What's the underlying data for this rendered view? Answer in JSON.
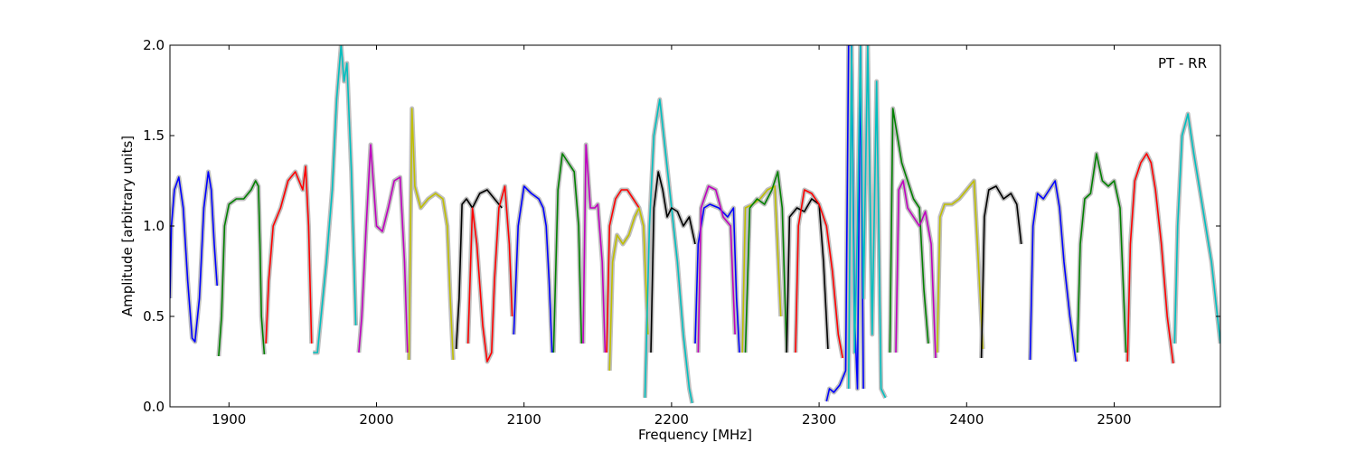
{
  "chart_data": {
    "type": "line",
    "title": "",
    "xlabel": "Frequency [MHz]",
    "ylabel": "Amplitude [arbitrary units]",
    "xlim": [
      1860,
      2572
    ],
    "ylim": [
      0,
      2.0
    ],
    "grid": false,
    "annotation": "PT - RR",
    "x_ticks": [
      1900,
      2000,
      2100,
      2200,
      2300,
      2400,
      2500
    ],
    "y_ticks": [
      0.0,
      0.5,
      1.0,
      1.5,
      2.0
    ],
    "x_tick_labels": [
      "1900",
      "2000",
      "2100",
      "2200",
      "2300",
      "2400",
      "2500"
    ],
    "y_tick_labels": [
      "0.0",
      "0.5",
      "1.0",
      "1.5",
      "2.0"
    ],
    "background_color": "#bfbfbf",
    "series": [
      {
        "color": "#0000ff",
        "x": [
          1860,
          1861,
          1863,
          1866,
          1869,
          1872,
          1875,
          1877,
          1880,
          1883,
          1886,
          1888,
          1890,
          1892
        ],
        "y": [
          0.6,
          1.0,
          1.2,
          1.27,
          1.1,
          0.7,
          0.38,
          0.36,
          0.6,
          1.1,
          1.3,
          1.2,
          0.9,
          0.67
        ]
      },
      {
        "color": "#008000",
        "x": [
          1893,
          1895,
          1897,
          1900,
          1905,
          1910,
          1915,
          1918,
          1920,
          1921,
          1922,
          1924
        ],
        "y": [
          0.28,
          0.5,
          1.0,
          1.12,
          1.15,
          1.15,
          1.2,
          1.25,
          1.22,
          0.9,
          0.5,
          0.29
        ]
      },
      {
        "color": "#ff0000",
        "x": [
          1925,
          1927,
          1930,
          1935,
          1940,
          1945,
          1950,
          1952,
          1954,
          1956
        ],
        "y": [
          0.35,
          0.7,
          1.0,
          1.1,
          1.25,
          1.3,
          1.2,
          1.33,
          1.0,
          0.35
        ]
      },
      {
        "color": "#00bfbf",
        "x": [
          1957,
          1960,
          1963,
          1966,
          1970,
          1973,
          1976,
          1978,
          1980,
          1983,
          1986
        ],
        "y": [
          0.3,
          0.3,
          0.55,
          0.8,
          1.2,
          1.7,
          2.0,
          1.8,
          1.9,
          1.3,
          0.45
        ]
      },
      {
        "color": "#bf00bf",
        "x": [
          1988,
          1990,
          1993,
          1996,
          2000,
          2004,
          2008,
          2012,
          2016,
          2019,
          2021
        ],
        "y": [
          0.3,
          0.5,
          1.0,
          1.45,
          1.0,
          0.97,
          1.1,
          1.25,
          1.27,
          0.8,
          0.3
        ]
      },
      {
        "color": "#bfbf00",
        "x": [
          2022,
          2024,
          2026,
          2030,
          2035,
          2040,
          2045,
          2048,
          2050,
          2052
        ],
        "y": [
          0.26,
          1.65,
          1.22,
          1.1,
          1.15,
          1.18,
          1.15,
          1.0,
          0.6,
          0.26
        ]
      },
      {
        "color": "#000000",
        "x": [
          2054,
          2056,
          2058,
          2061,
          2065,
          2070,
          2075,
          2080,
          2085
        ],
        "y": [
          0.32,
          0.6,
          1.12,
          1.15,
          1.1,
          1.18,
          1.2,
          1.15,
          1.1
        ]
      },
      {
        "color": "#ff0000",
        "x": [
          2062,
          2065,
          2068,
          2072,
          2075,
          2078,
          2080,
          2083,
          2087,
          2090,
          2092
        ],
        "y": [
          0.35,
          1.1,
          0.9,
          0.45,
          0.25,
          0.3,
          0.7,
          1.1,
          1.22,
          0.9,
          0.5
        ]
      },
      {
        "color": "#0000ff",
        "x": [
          2093,
          2096,
          2100,
          2105,
          2110,
          2113,
          2115,
          2117,
          2119
        ],
        "y": [
          0.4,
          1.0,
          1.22,
          1.18,
          1.15,
          1.1,
          1.0,
          0.7,
          0.3
        ]
      },
      {
        "color": "#008000",
        "x": [
          2120,
          2123,
          2126,
          2130,
          2134,
          2137,
          2139
        ],
        "y": [
          0.3,
          1.2,
          1.4,
          1.35,
          1.3,
          1.0,
          0.35
        ]
      },
      {
        "color": "#bf00bf",
        "x": [
          2140,
          2142,
          2145,
          2148,
          2150,
          2153,
          2155
        ],
        "y": [
          0.35,
          1.45,
          1.1,
          1.1,
          1.12,
          0.8,
          0.3
        ]
      },
      {
        "color": "#ff0000",
        "x": [
          2156,
          2158,
          2162,
          2166,
          2170,
          2174,
          2178
        ],
        "y": [
          0.3,
          1.0,
          1.15,
          1.2,
          1.2,
          1.15,
          1.1
        ]
      },
      {
        "color": "#bfbf00",
        "x": [
          2158,
          2160,
          2163,
          2167,
          2171,
          2175,
          2178,
          2181,
          2184
        ],
        "y": [
          0.2,
          0.8,
          0.95,
          0.9,
          0.95,
          1.05,
          1.1,
          1.0,
          0.4
        ]
      },
      {
        "color": "#00bfbf",
        "x": [
          2182,
          2185,
          2188,
          2192,
          2196,
          2200,
          2204,
          2208,
          2212,
          2214
        ],
        "y": [
          0.05,
          1.0,
          1.5,
          1.7,
          1.4,
          1.1,
          0.8,
          0.4,
          0.1,
          0.02
        ]
      },
      {
        "color": "#000000",
        "x": [
          2186,
          2188,
          2191,
          2194,
          2197,
          2200,
          2204,
          2208,
          2212,
          2216
        ],
        "y": [
          0.3,
          1.1,
          1.3,
          1.2,
          1.05,
          1.1,
          1.08,
          1.0,
          1.05,
          0.9
        ]
      },
      {
        "color": "#0000ff",
        "x": [
          2216,
          2218,
          2222,
          2226,
          2232,
          2238,
          2242,
          2244,
          2246
        ],
        "y": [
          0.35,
          0.9,
          1.1,
          1.12,
          1.1,
          1.05,
          1.1,
          0.6,
          0.3
        ]
      },
      {
        "color": "#bf00bf",
        "x": [
          2218,
          2220,
          2225,
          2230,
          2235,
          2240,
          2243
        ],
        "y": [
          0.3,
          1.1,
          1.22,
          1.2,
          1.05,
          1.0,
          0.4
        ]
      },
      {
        "color": "#bfbf00",
        "x": [
          2248,
          2250,
          2255,
          2260,
          2265,
          2270,
          2274
        ],
        "y": [
          0.3,
          1.1,
          1.12,
          1.15,
          1.2,
          1.22,
          0.5
        ]
      },
      {
        "color": "#008000",
        "x": [
          2250,
          2253,
          2258,
          2263,
          2268,
          2272,
          2275,
          2278
        ],
        "y": [
          0.3,
          1.1,
          1.15,
          1.12,
          1.2,
          1.3,
          1.1,
          0.3
        ]
      },
      {
        "color": "#000000",
        "x": [
          2278,
          2280,
          2285,
          2290,
          2295,
          2300,
          2303,
          2306
        ],
        "y": [
          0.3,
          1.05,
          1.1,
          1.08,
          1.15,
          1.12,
          0.8,
          0.32
        ]
      },
      {
        "color": "#ff0000",
        "x": [
          2284,
          2286,
          2290,
          2295,
          2300,
          2305,
          2309,
          2313,
          2316
        ],
        "y": [
          0.3,
          1.0,
          1.2,
          1.18,
          1.12,
          1.0,
          0.75,
          0.4,
          0.27
        ]
      },
      {
        "color": "#0000ff",
        "x": [
          2305,
          2307,
          2310,
          2314,
          2318,
          2320,
          2322,
          2324,
          2326,
          2328,
          2330
        ],
        "y": [
          0.03,
          0.1,
          0.08,
          0.12,
          0.2,
          2.0,
          2.0,
          0.5,
          0.1,
          2.0,
          0.1
        ]
      },
      {
        "color": "#00bfbf",
        "x": [
          2320,
          2322,
          2324,
          2326,
          2328,
          2330,
          2333,
          2336,
          2339,
          2342,
          2345
        ],
        "y": [
          0.1,
          2.0,
          0.3,
          1.0,
          2.0,
          0.6,
          2.0,
          0.4,
          1.8,
          0.1,
          0.05
        ]
      },
      {
        "color": "#008000",
        "x": [
          2348,
          2350,
          2353,
          2356,
          2360,
          2364,
          2368,
          2371,
          2374
        ],
        "y": [
          0.3,
          1.65,
          1.5,
          1.35,
          1.25,
          1.15,
          1.1,
          0.65,
          0.35
        ]
      },
      {
        "color": "#bf00bf",
        "x": [
          2352,
          2354,
          2357,
          2360,
          2364,
          2368,
          2372,
          2376,
          2379
        ],
        "y": [
          0.3,
          1.2,
          1.25,
          1.1,
          1.05,
          1.0,
          1.08,
          0.9,
          0.27
        ]
      },
      {
        "color": "#bfbf00",
        "x": [
          2380,
          2382,
          2385,
          2390,
          2395,
          2400,
          2405,
          2408,
          2411
        ],
        "y": [
          0.3,
          1.05,
          1.12,
          1.12,
          1.15,
          1.2,
          1.25,
          0.8,
          0.32
        ]
      },
      {
        "color": "#000000",
        "x": [
          2410,
          2412,
          2415,
          2420,
          2425,
          2430,
          2434,
          2437
        ],
        "y": [
          0.27,
          1.05,
          1.2,
          1.22,
          1.15,
          1.18,
          1.12,
          0.9
        ]
      },
      {
        "color": "#0000ff",
        "x": [
          2443,
          2445,
          2448,
          2452,
          2456,
          2460,
          2463,
          2466,
          2470,
          2474
        ],
        "y": [
          0.26,
          1.0,
          1.18,
          1.15,
          1.2,
          1.25,
          1.1,
          0.8,
          0.5,
          0.25
        ]
      },
      {
        "color": "#008000",
        "x": [
          2475,
          2477,
          2480,
          2484,
          2488,
          2492,
          2496,
          2500,
          2504,
          2508
        ],
        "y": [
          0.3,
          0.9,
          1.15,
          1.18,
          1.4,
          1.25,
          1.22,
          1.25,
          1.1,
          0.3
        ]
      },
      {
        "color": "#ff0000",
        "x": [
          2509,
          2511,
          2514,
          2518,
          2522,
          2525,
          2528,
          2532,
          2536,
          2540
        ],
        "y": [
          0.25,
          0.9,
          1.25,
          1.35,
          1.4,
          1.35,
          1.2,
          0.9,
          0.5,
          0.24
        ]
      },
      {
        "color": "#00bfbf",
        "x": [
          2541,
          2543,
          2546,
          2550,
          2554,
          2558,
          2562,
          2566,
          2570,
          2572
        ],
        "y": [
          0.35,
          1.0,
          1.5,
          1.62,
          1.4,
          1.2,
          1.0,
          0.8,
          0.5,
          0.35
        ]
      }
    ]
  }
}
